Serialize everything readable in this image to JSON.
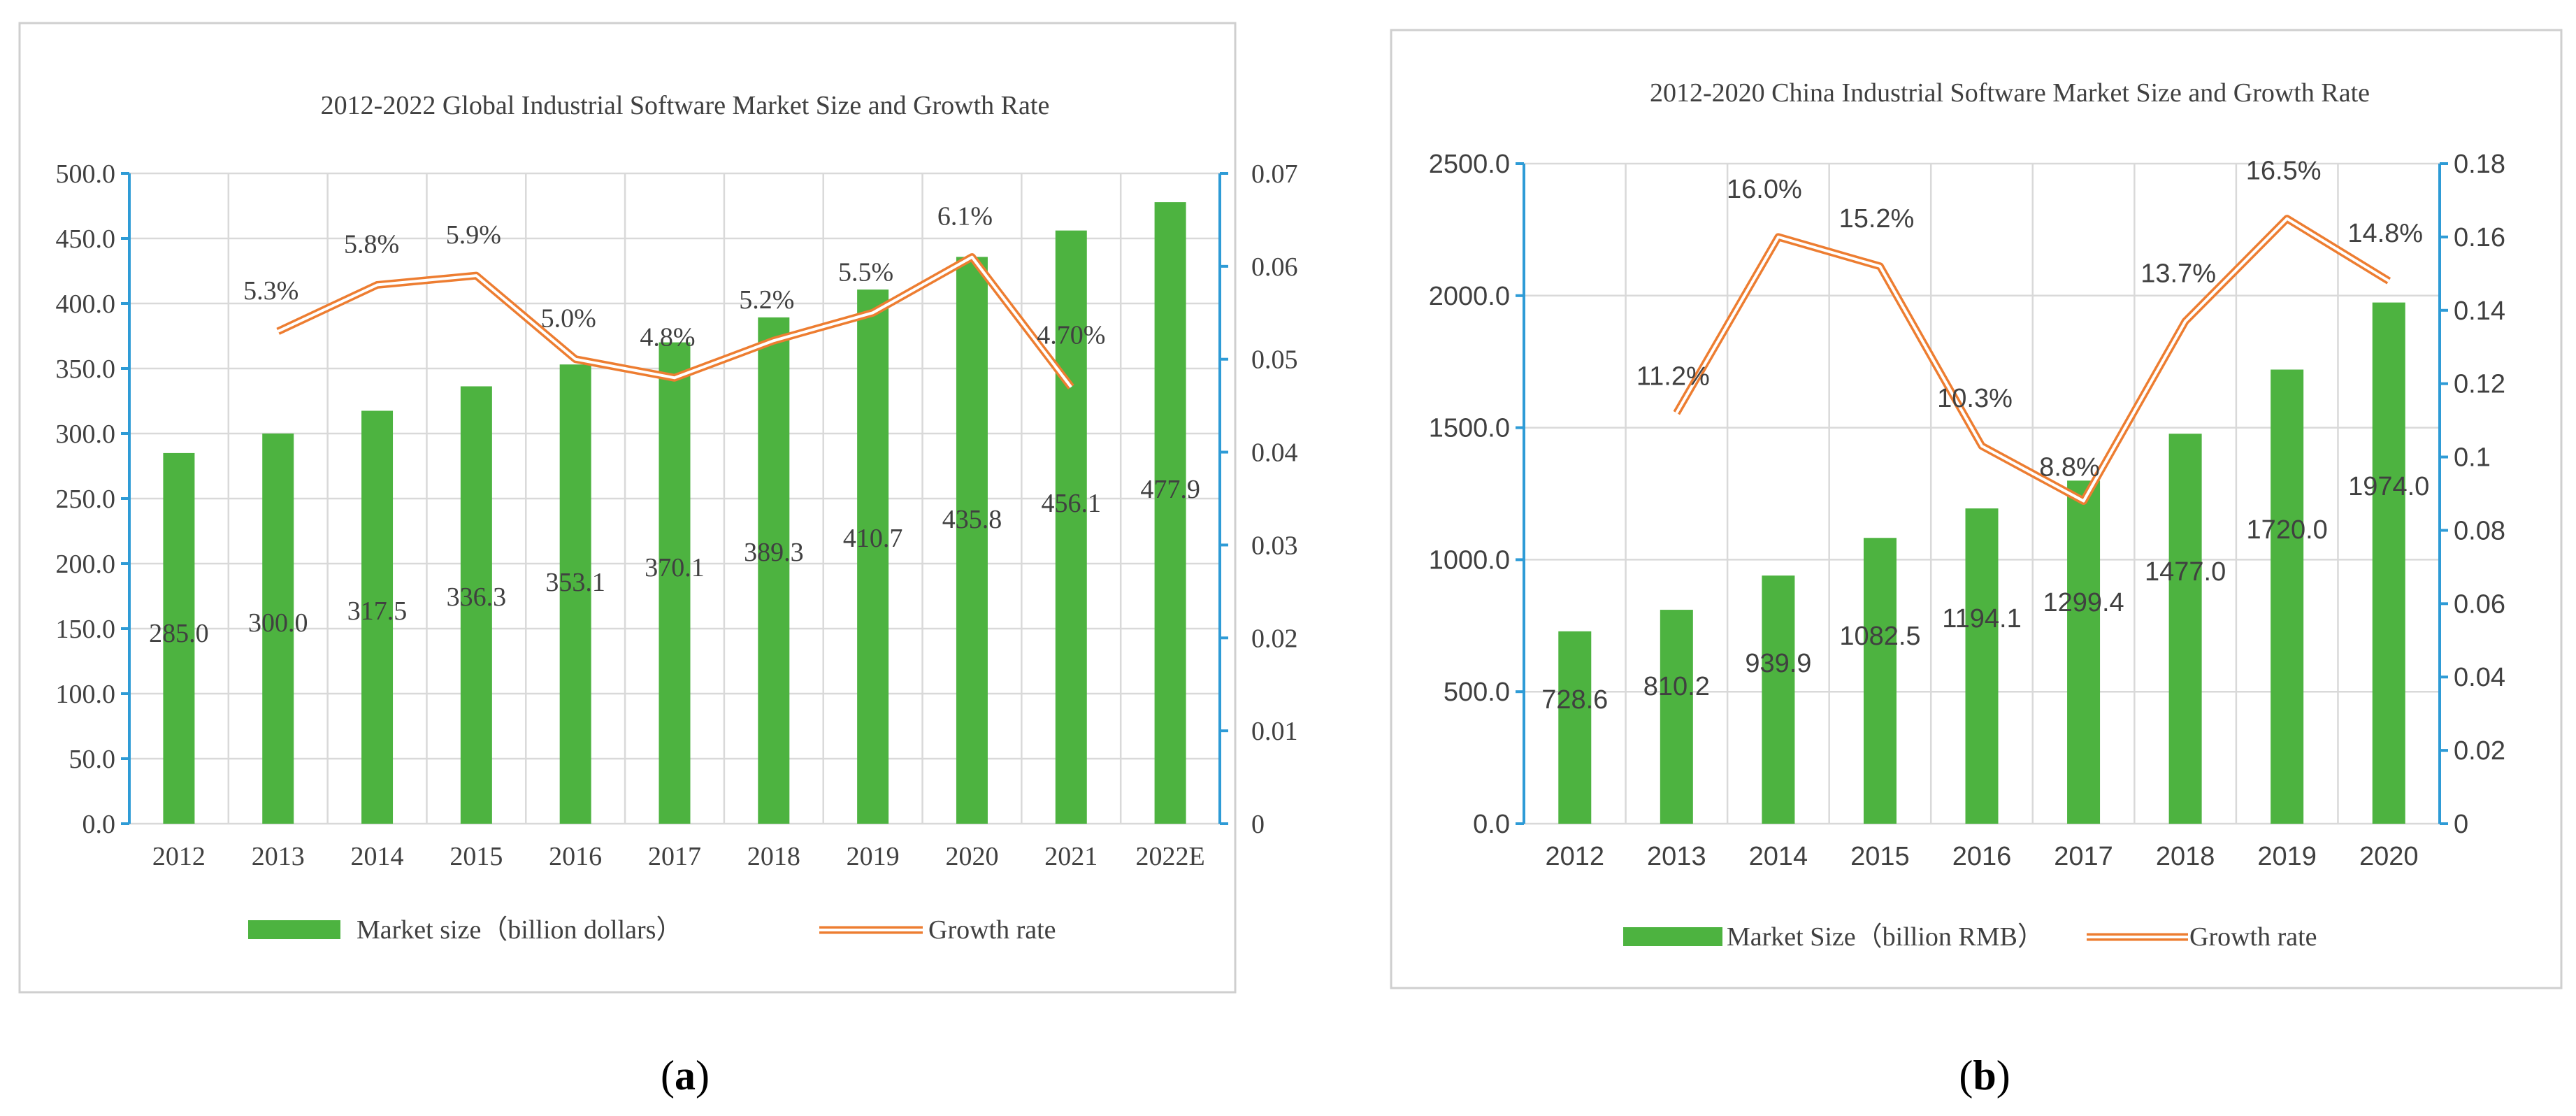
{
  "chart_data": [
    {
      "type": "bar",
      "panel_label": "a",
      "title": "2012-2022 Global Industrial Software Market Size and Growth Rate",
      "categories": [
        "2012",
        "2013",
        "2014",
        "2015",
        "2016",
        "2017",
        "2018",
        "2019",
        "2020",
        "2021",
        "2022E"
      ],
      "series": [
        {
          "name": "Market size（billion dollars）",
          "kind": "bar",
          "axis": "left",
          "values": [
            285.0,
            300.0,
            317.5,
            336.3,
            353.1,
            370.1,
            389.3,
            410.7,
            435.8,
            456.1,
            477.9
          ],
          "value_labels": [
            "285.0",
            "300.0",
            "317.5",
            "336.3",
            "353.1",
            "370.1",
            "389.3",
            "410.7",
            "435.8",
            "456.1",
            "477.9"
          ],
          "color": "#4db340"
        },
        {
          "name": "Growth rate",
          "kind": "line",
          "axis": "right",
          "values": [
            null,
            0.053,
            0.058,
            0.059,
            0.05,
            0.048,
            0.052,
            0.055,
            0.061,
            0.047,
            null
          ],
          "value_labels": [
            null,
            "5.3%",
            "5.8%",
            "5.9%",
            "5.0%",
            "4.8%",
            "5.2%",
            "5.5%",
            "6.1%",
            "4.70%",
            null
          ],
          "color": "#ed7d31"
        }
      ],
      "ylim": [
        0,
        500
      ],
      "y_ticks": [
        "0.0",
        "50.0",
        "100.0",
        "150.0",
        "200.0",
        "250.0",
        "300.0",
        "350.0",
        "400.0",
        "450.0",
        "500.0"
      ],
      "y2lim": [
        0,
        0.07
      ],
      "y2_ticks": [
        "0",
        "0.01",
        "0.02",
        "0.03",
        "0.04",
        "0.05",
        "0.06",
        "0.07"
      ],
      "legend_position": "bottom",
      "grid": true
    },
    {
      "type": "bar",
      "panel_label": "b",
      "title": "2012-2020 China Industrial Software Market Size and Growth Rate",
      "categories": [
        "2012",
        "2013",
        "2014",
        "2015",
        "2016",
        "2017",
        "2018",
        "2019",
        "2020"
      ],
      "series": [
        {
          "name": "Market Size（billion RMB）",
          "kind": "bar",
          "axis": "left",
          "values": [
            728.6,
            810.2,
            939.9,
            1082.5,
            1194.1,
            1299.4,
            1477.0,
            1720.0,
            1974.0
          ],
          "value_labels": [
            "728.6",
            "810.2",
            "939.9",
            "1082.5",
            "1194.1",
            "1299.4",
            "1477.0",
            "1720.0",
            "1974.0"
          ],
          "color": "#4db340"
        },
        {
          "name": "Growth rate",
          "kind": "line",
          "axis": "right",
          "values": [
            null,
            0.112,
            0.16,
            0.152,
            0.103,
            0.088,
            0.137,
            0.165,
            0.148
          ],
          "value_labels": [
            null,
            "11.2%",
            "16.0%",
            "15.2%",
            "10.3%",
            "8.8%",
            "13.7%",
            "16.5%",
            "14.8%"
          ],
          "color": "#ed7d31"
        }
      ],
      "ylim": [
        0,
        2500
      ],
      "y_ticks": [
        "0.0",
        "500.0",
        "1000.0",
        "1500.0",
        "2000.0",
        "2500.0"
      ],
      "y2lim": [
        0,
        0.18
      ],
      "y2_ticks": [
        "0",
        "0.02",
        "0.04",
        "0.06",
        "0.08",
        "0.1",
        "0.12",
        "0.14",
        "0.16",
        "0.18"
      ],
      "legend_position": "bottom",
      "grid": true
    }
  ],
  "captions": {
    "a": {
      "open": "(",
      "letter": "a",
      "close": ")"
    },
    "b": {
      "open": "(",
      "letter": "b",
      "close": ")"
    }
  }
}
